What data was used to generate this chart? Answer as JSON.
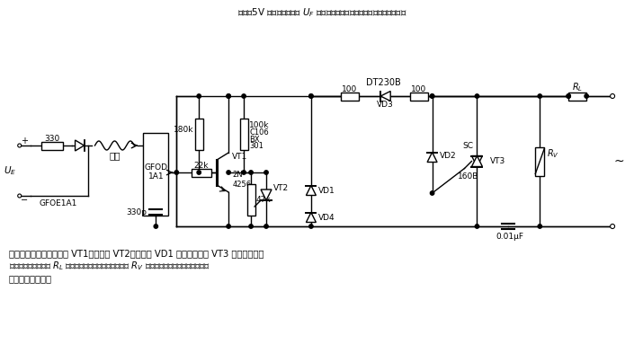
{
  "title": "当有约5V 的输入控制信号 $U_F$ 后通过光导纤维传导的光信号被光敏三极管",
  "btxt1": "接收，并进而通过三极管 VT1、晶闸管 VT2、二极管 VD1 给双向晶闸管 VT3 门极加触发信",
  "btxt2": "号，使之导通，负载 $R_L$ 接通电源。反之，则不通。图中 $R_V$ 为压敏电阐，用于防止双向晶闸",
  "btxt3": "管上承受过电压。",
  "bg": "#ffffff"
}
